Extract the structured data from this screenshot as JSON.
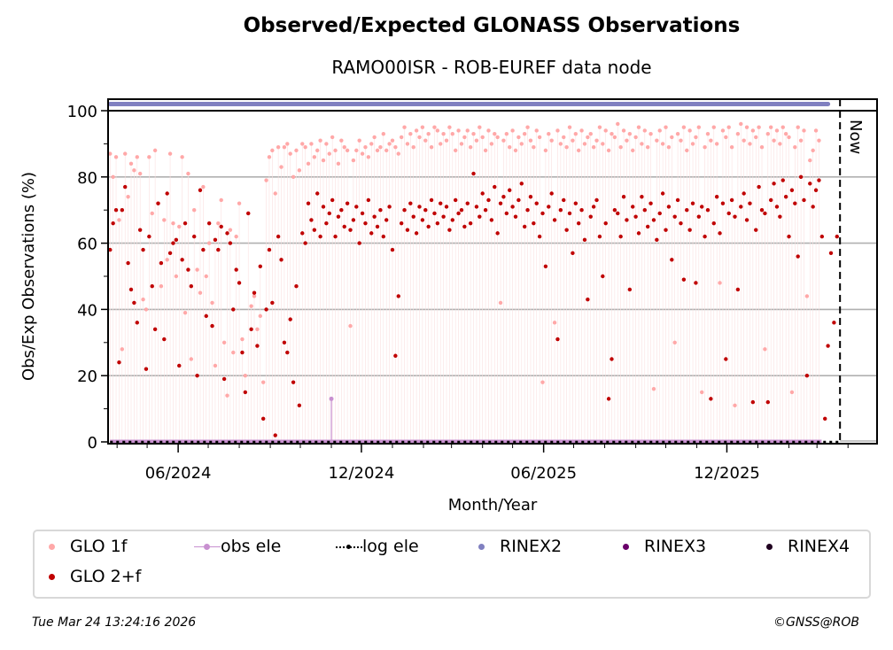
{
  "header": {
    "title": "Observed/Expected GLONASS Observations",
    "subtitle": "RAMO00ISR - ROB-EUREF data node"
  },
  "footer": {
    "timestamp": "Tue Mar 24 13:24:16 2026",
    "copyright": "©GNSS@ROB"
  },
  "legend": {
    "items": [
      {
        "label": "GLO 1f",
        "color": "#ffa8a8",
        "style": "dot"
      },
      {
        "label": "obs ele",
        "color": "#c890d0",
        "style": "line-dot"
      },
      {
        "label": "log ele",
        "color": "#000000",
        "style": "dotted-line"
      },
      {
        "label": "RINEX2",
        "color": "#8080c0",
        "style": "dot"
      },
      {
        "label": "RINEX3",
        "color": "#6a006a",
        "style": "dot"
      },
      {
        "label": "RINEX4",
        "color": "#200020",
        "style": "dot"
      },
      {
        "label": "GLO 2+f",
        "color": "#c00000",
        "style": "dot"
      }
    ]
  },
  "chart_data": {
    "type": "scatter",
    "title": "Observed/Expected GLONASS Observations",
    "subtitle": "RAMO00ISR - ROB-EUREF data node",
    "xlabel": "Month/Year",
    "ylabel": "Obs/Exp Observations (%)",
    "xlim": [
      "2024-03-23",
      "2026-04-30"
    ],
    "ylim": [
      -1,
      103
    ],
    "yticks": [
      0,
      20,
      40,
      60,
      80,
      100
    ],
    "xticks": [
      {
        "date": "2024-06-01",
        "label": "06/2024"
      },
      {
        "date": "2024-12-01",
        "label": "12/2024"
      },
      {
        "date": "2025-06-01",
        "label": "06/2025"
      },
      {
        "date": "2025-12-01",
        "label": "12/2025"
      }
    ],
    "grid": "y",
    "now_marker": {
      "date": "2026-03-24",
      "label": "Now"
    },
    "rinex2_band": {
      "value": 101.5,
      "start": "2024-03-25",
      "end": "2026-03-12"
    },
    "x_start": "2024-03-25",
    "x_step_days": 3,
    "series": [
      {
        "name": "GLO 1f",
        "color": "#ffa8a8",
        "values": [
          87,
          80,
          86,
          67,
          28,
          87,
          74,
          84,
          82,
          86,
          81,
          43,
          40,
          86,
          69,
          88,
          72,
          47,
          67,
          55,
          87,
          66,
          50,
          65,
          86,
          39,
          81,
          25,
          70,
          52,
          45,
          77,
          50,
          60,
          42,
          23,
          66,
          73,
          30,
          14,
          64,
          27,
          62,
          72,
          31,
          20,
          69,
          41,
          44,
          34,
          38,
          18,
          79,
          86,
          88,
          75,
          89,
          83,
          89,
          90,
          87,
          80,
          88,
          82,
          90,
          89,
          84,
          90,
          86,
          88,
          91,
          85,
          90,
          87,
          92,
          88,
          84,
          91,
          89,
          88,
          35,
          85,
          88,
          91,
          87,
          89,
          86,
          90,
          92,
          88,
          89,
          93,
          88,
          90,
          91,
          89,
          87,
          92,
          95,
          90,
          93,
          89,
          94,
          92,
          95,
          91,
          93,
          89,
          95,
          94,
          90,
          93,
          91,
          95,
          93,
          88,
          94,
          90,
          92,
          94,
          89,
          93,
          91,
          95,
          92,
          88,
          94,
          90,
          93,
          92,
          42,
          91,
          93,
          89,
          94,
          88,
          92,
          90,
          93,
          95,
          91,
          89,
          94,
          92,
          18,
          88,
          93,
          91,
          36,
          94,
          90,
          92,
          89,
          95,
          91,
          93,
          88,
          94,
          90,
          92,
          93,
          89,
          91,
          95,
          90,
          94,
          88,
          93,
          92,
          96,
          89,
          94,
          91,
          93,
          88,
          92,
          95,
          90,
          94,
          89,
          93,
          16,
          91,
          94,
          90,
          95,
          89,
          92,
          30,
          93,
          91,
          95,
          88,
          94,
          90,
          92,
          95,
          15,
          89,
          93,
          91,
          95,
          90,
          48,
          94,
          92,
          95,
          89,
          11,
          93,
          96,
          91,
          95,
          90,
          94,
          92,
          95,
          89,
          28,
          93,
          95,
          91,
          94,
          90,
          95,
          93,
          92,
          15,
          89,
          95,
          91,
          94,
          44,
          85,
          88,
          94,
          91
        ]
      },
      {
        "name": "GLO 2+f",
        "color": "#c00000",
        "values": [
          58,
          66,
          70,
          24,
          70,
          77,
          54,
          46,
          42,
          36,
          64,
          58,
          22,
          62,
          47,
          34,
          72,
          54,
          31,
          75,
          57,
          60,
          61,
          23,
          55,
          66,
          52,
          47,
          62,
          20,
          76,
          58,
          38,
          66,
          35,
          61,
          58,
          65,
          19,
          63,
          60,
          40,
          52,
          48,
          27,
          15,
          69,
          34,
          45,
          29,
          53,
          7,
          40,
          58,
          42,
          2,
          62,
          55,
          30,
          27,
          37,
          18,
          47,
          11,
          63,
          60,
          72,
          67,
          64,
          75,
          62,
          71,
          66,
          69,
          73,
          62,
          68,
          70,
          65,
          72,
          64,
          67,
          71,
          60,
          69,
          66,
          73,
          63,
          68,
          65,
          70,
          62,
          67,
          71,
          58,
          26,
          44,
          66,
          70,
          64,
          72,
          68,
          63,
          71,
          67,
          70,
          65,
          73,
          69,
          66,
          72,
          68,
          71,
          64,
          67,
          73,
          69,
          70,
          65,
          72,
          66,
          81,
          71,
          68,
          75,
          70,
          73,
          67,
          77,
          63,
          72,
          74,
          69,
          76,
          71,
          68,
          73,
          78,
          65,
          70,
          74,
          66,
          72,
          62,
          69,
          53,
          71,
          75,
          67,
          31,
          70,
          73,
          64,
          69,
          57,
          72,
          66,
          70,
          61,
          43,
          68,
          71,
          73,
          62,
          50,
          66,
          13,
          25,
          70,
          69,
          62,
          74,
          67,
          46,
          71,
          68,
          63,
          74,
          70,
          65,
          72,
          67,
          61,
          69,
          75,
          64,
          71,
          55,
          68,
          73,
          66,
          49,
          70,
          64,
          72,
          48,
          68,
          71,
          62,
          70,
          13,
          66,
          74,
          63,
          72,
          25,
          69,
          73,
          68,
          46,
          71,
          75,
          67,
          72,
          12,
          64,
          77,
          70,
          69,
          12,
          73,
          78,
          71,
          68,
          79,
          74,
          62,
          76,
          72,
          56,
          80,
          73,
          20,
          78,
          71,
          76,
          79,
          62,
          7,
          29,
          57,
          36,
          62
        ]
      },
      {
        "name": "obs ele",
        "color": "#c890d0",
        "baseline": 0,
        "spike": {
          "date": "2024-11-01",
          "value": 13
        }
      },
      {
        "name": "log ele",
        "color": "#000000",
        "value": 0
      }
    ]
  }
}
